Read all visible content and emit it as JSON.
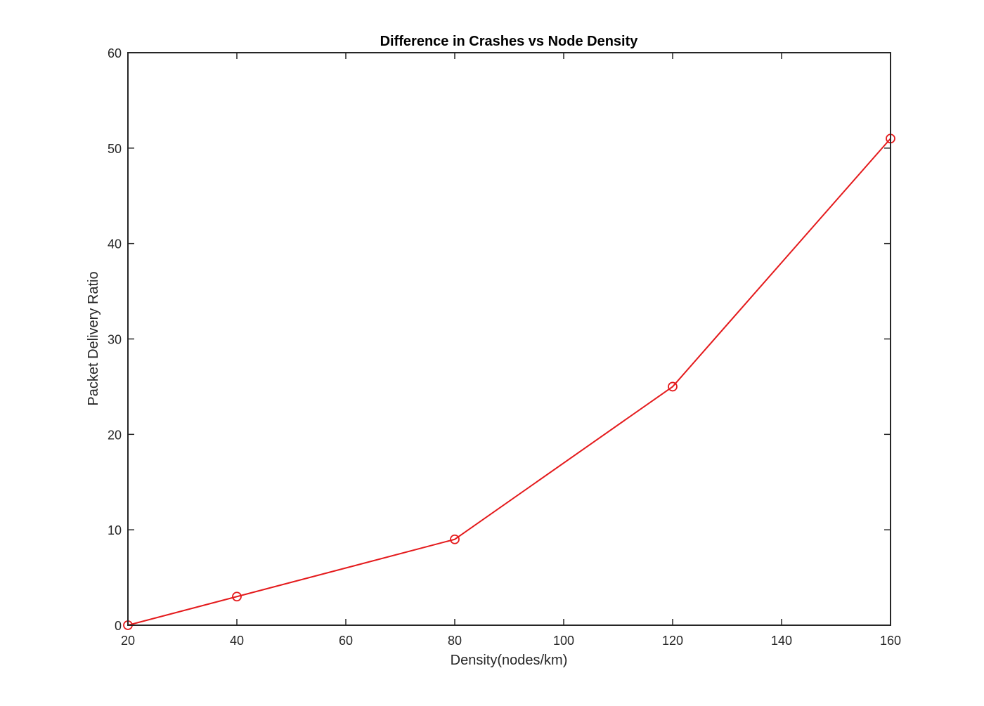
{
  "chart_data": {
    "type": "line",
    "title": "Difference in Crashes vs Node Density",
    "xlabel": "Density(nodes/km)",
    "ylabel": "Packet Delivery Ratio",
    "xlim": [
      20,
      160
    ],
    "ylim": [
      0,
      60
    ],
    "xticks": [
      20,
      40,
      60,
      80,
      100,
      120,
      140,
      160
    ],
    "yticks": [
      0,
      10,
      20,
      30,
      40,
      50,
      60
    ],
    "grid": false,
    "legend": "none",
    "series": [
      {
        "color": "#e41a1c",
        "marker": "circle",
        "x": [
          20,
          40,
          80,
          120,
          160
        ],
        "y": [
          0,
          3,
          9,
          25,
          51
        ]
      }
    ]
  }
}
